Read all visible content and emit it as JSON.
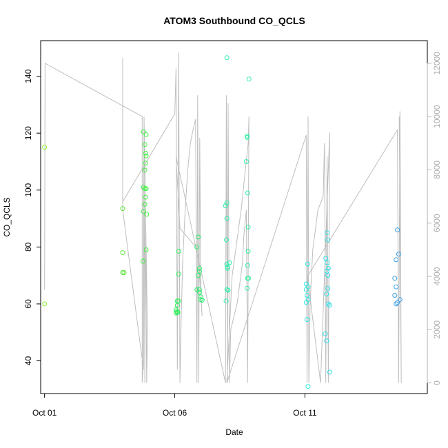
{
  "chart_data": {
    "type": "scatter",
    "title": "ATOM3 Southbound CO_QCLS",
    "xlabel": "Date",
    "ylabel": "CO_QCLS",
    "xlim": [
      -0.15,
      14.7
    ],
    "ylim": [
      28.5,
      152.5
    ],
    "y2lim": [
      -400,
      12850
    ],
    "x_ticks": [
      {
        "value": 0,
        "label": "Oct 01"
      },
      {
        "value": 5,
        "label": "Oct 06"
      },
      {
        "value": 10,
        "label": "Oct 11"
      }
    ],
    "y_ticks": [
      40,
      60,
      80,
      100,
      120,
      140
    ],
    "y2_ticks": [
      0,
      2000,
      4000,
      6000,
      8000,
      10000,
      12000
    ],
    "grid": false,
    "legend": "none",
    "colors": {
      "frame": "#000000",
      "line": "#bebebe",
      "right_axis": "#b0b0b0"
    },
    "points": [
      {
        "x": 0.0,
        "y": 115.0,
        "color": "#8cf22c"
      },
      {
        "x": 0.0,
        "y": 60.0,
        "color": "#8cf22c"
      },
      {
        "x": 3.0,
        "y": 93.5,
        "color": "#5ee83a"
      },
      {
        "x": 3.0,
        "y": 78.0,
        "color": "#5ee83a"
      },
      {
        "x": 3.0,
        "y": 71.0,
        "color": "#5ee83a"
      },
      {
        "x": 3.05,
        "y": 71.0,
        "color": "#5ee83a"
      },
      {
        "x": 3.8,
        "y": 120.5,
        "color": "#3ef03e"
      },
      {
        "x": 3.9,
        "y": 119.5,
        "color": "#3ef03e"
      },
      {
        "x": 3.85,
        "y": 116.0,
        "color": "#3ef03e"
      },
      {
        "x": 3.88,
        "y": 113.0,
        "color": "#3ef03e"
      },
      {
        "x": 3.9,
        "y": 112.0,
        "color": "#3ef03e"
      },
      {
        "x": 3.88,
        "y": 109.5,
        "color": "#3ef03e"
      },
      {
        "x": 3.85,
        "y": 107.0,
        "color": "#3ef03e"
      },
      {
        "x": 3.8,
        "y": 101.0,
        "color": "#3ef03e"
      },
      {
        "x": 3.85,
        "y": 100.5,
        "color": "#3ef03e"
      },
      {
        "x": 3.9,
        "y": 100.5,
        "color": "#3ef03e"
      },
      {
        "x": 3.88,
        "y": 97.5,
        "color": "#3ef03e"
      },
      {
        "x": 3.85,
        "y": 95.0,
        "color": "#3ef03e"
      },
      {
        "x": 3.8,
        "y": 92.5,
        "color": "#3ef03e"
      },
      {
        "x": 3.92,
        "y": 91.5,
        "color": "#3ef03e"
      },
      {
        "x": 3.9,
        "y": 79.0,
        "color": "#3ef03e"
      },
      {
        "x": 3.78,
        "y": 75.0,
        "color": "#3ef03e"
      },
      {
        "x": 5.15,
        "y": 78.5,
        "color": "#2ef05a"
      },
      {
        "x": 5.15,
        "y": 70.5,
        "color": "#2ef05a"
      },
      {
        "x": 5.1,
        "y": 61.0,
        "color": "#2ef05a"
      },
      {
        "x": 5.15,
        "y": 61.0,
        "color": "#2ef05a"
      },
      {
        "x": 5.1,
        "y": 59.5,
        "color": "#2ef05a"
      },
      {
        "x": 5.05,
        "y": 58.0,
        "color": "#2ef05a"
      },
      {
        "x": 5.08,
        "y": 57.5,
        "color": "#2ef05a"
      },
      {
        "x": 5.1,
        "y": 57.0,
        "color": "#2ef05a"
      },
      {
        "x": 5.05,
        "y": 56.8,
        "color": "#2ef05a"
      },
      {
        "x": 5.12,
        "y": 57.0,
        "color": "#2ef05a"
      },
      {
        "x": 5.9,
        "y": 83.5,
        "color": "#2cee6c"
      },
      {
        "x": 5.85,
        "y": 80.0,
        "color": "#2cee6c"
      },
      {
        "x": 5.95,
        "y": 72.5,
        "color": "#2cee6c"
      },
      {
        "x": 5.95,
        "y": 71.5,
        "color": "#2cee6c"
      },
      {
        "x": 5.9,
        "y": 70.0,
        "color": "#2cee6c"
      },
      {
        "x": 5.85,
        "y": 65.0,
        "color": "#2cee6c"
      },
      {
        "x": 5.95,
        "y": 65.0,
        "color": "#2cee6c"
      },
      {
        "x": 5.95,
        "y": 64.0,
        "color": "#2cee6c"
      },
      {
        "x": 6.0,
        "y": 62.5,
        "color": "#2cee6c"
      },
      {
        "x": 6.0,
        "y": 61.5,
        "color": "#2cee6c"
      },
      {
        "x": 6.05,
        "y": 61.3,
        "color": "#2cee6c"
      },
      {
        "x": 7.0,
        "y": 146.5,
        "color": "#2cf0a8"
      },
      {
        "x": 7.0,
        "y": 95.5,
        "color": "#2cf0a8"
      },
      {
        "x": 6.95,
        "y": 94.5,
        "color": "#2cf0a8"
      },
      {
        "x": 7.0,
        "y": 90.0,
        "color": "#2cf0a8"
      },
      {
        "x": 6.98,
        "y": 82.5,
        "color": "#2cf0a8"
      },
      {
        "x": 7.1,
        "y": 74.5,
        "color": "#2cf0a8"
      },
      {
        "x": 7.0,
        "y": 74.0,
        "color": "#2cf0a8"
      },
      {
        "x": 7.02,
        "y": 73.0,
        "color": "#2cf0a8"
      },
      {
        "x": 7.03,
        "y": 72.5,
        "color": "#2cf0a8"
      },
      {
        "x": 7.0,
        "y": 65.0,
        "color": "#2cf0a8"
      },
      {
        "x": 7.05,
        "y": 64.8,
        "color": "#2cf0a8"
      },
      {
        "x": 6.97,
        "y": 61.0,
        "color": "#2cf0a8"
      },
      {
        "x": 7.85,
        "y": 139.0,
        "color": "#2cf0a0"
      },
      {
        "x": 7.78,
        "y": 119.0,
        "color": "#2cf0a0"
      },
      {
        "x": 7.78,
        "y": 118.5,
        "color": "#2cf0a0"
      },
      {
        "x": 7.75,
        "y": 110.0,
        "color": "#2cf0a0"
      },
      {
        "x": 7.8,
        "y": 99.0,
        "color": "#2cf0a0"
      },
      {
        "x": 7.82,
        "y": 87.0,
        "color": "#2cf0a0"
      },
      {
        "x": 7.82,
        "y": 78.5,
        "color": "#2cf0a0"
      },
      {
        "x": 7.8,
        "y": 73.5,
        "color": "#2cf0a0"
      },
      {
        "x": 7.8,
        "y": 69.0,
        "color": "#2cf0a0"
      },
      {
        "x": 7.83,
        "y": 69.0,
        "color": "#2cf0a0"
      },
      {
        "x": 7.78,
        "y": 65.5,
        "color": "#2cf0a0"
      },
      {
        "x": 10.1,
        "y": 74.0,
        "color": "#2ee8e0"
      },
      {
        "x": 10.05,
        "y": 67.0,
        "color": "#2ee8e0"
      },
      {
        "x": 10.12,
        "y": 66.0,
        "color": "#2ee8e0"
      },
      {
        "x": 10.05,
        "y": 65.0,
        "color": "#2ee8e0"
      },
      {
        "x": 10.08,
        "y": 63.0,
        "color": "#2ee8e0"
      },
      {
        "x": 10.12,
        "y": 61.5,
        "color": "#2ee8e0"
      },
      {
        "x": 10.05,
        "y": 60.5,
        "color": "#2ee8e0"
      },
      {
        "x": 10.08,
        "y": 54.5,
        "color": "#2ee8e0"
      },
      {
        "x": 10.12,
        "y": 31.0,
        "color": "#2ee8e0"
      },
      {
        "x": 10.85,
        "y": 85.0,
        "color": "#30e0e8"
      },
      {
        "x": 10.88,
        "y": 82.5,
        "color": "#30e0e8"
      },
      {
        "x": 10.8,
        "y": 76.0,
        "color": "#30e0e8"
      },
      {
        "x": 10.85,
        "y": 74.5,
        "color": "#30e0e8"
      },
      {
        "x": 10.9,
        "y": 72.5,
        "color": "#30e0e8"
      },
      {
        "x": 10.85,
        "y": 71.5,
        "color": "#30e0e8"
      },
      {
        "x": 10.88,
        "y": 70.0,
        "color": "#30e0e8"
      },
      {
        "x": 10.88,
        "y": 65.5,
        "color": "#30e0e8"
      },
      {
        "x": 10.83,
        "y": 63.5,
        "color": "#30e0e8"
      },
      {
        "x": 10.9,
        "y": 60.0,
        "color": "#30e0e8"
      },
      {
        "x": 10.95,
        "y": 59.5,
        "color": "#30e0e8"
      },
      {
        "x": 10.78,
        "y": 49.5,
        "color": "#30e0e8"
      },
      {
        "x": 10.83,
        "y": 47.0,
        "color": "#30e0e8"
      },
      {
        "x": 10.95,
        "y": 36.0,
        "color": "#30e0e8"
      },
      {
        "x": 13.55,
        "y": 86.0,
        "color": "#3aa0e8"
      },
      {
        "x": 13.6,
        "y": 77.5,
        "color": "#3aa0e8"
      },
      {
        "x": 13.5,
        "y": 75.5,
        "color": "#3aa0e8"
      },
      {
        "x": 13.45,
        "y": 69.0,
        "color": "#3aa0e8"
      },
      {
        "x": 13.5,
        "y": 66.0,
        "color": "#3aa0e8"
      },
      {
        "x": 13.45,
        "y": 63.0,
        "color": "#3aa0e8"
      },
      {
        "x": 13.65,
        "y": 61.5,
        "color": "#3aa0e8"
      },
      {
        "x": 13.55,
        "y": 60.5,
        "color": "#3aa0e8"
      },
      {
        "x": 13.5,
        "y": 60.0,
        "color": "#3aa0e8"
      }
    ],
    "altitude_series": {
      "axis": "right",
      "x": [
        0.0,
        0.02,
        3.75,
        3.75,
        3.78,
        3.82,
        3.85,
        3.88,
        3.92,
        3.95,
        3.82,
        3.8,
        3.0,
        3.0,
        3.0,
        5.0,
        5.05,
        5.1,
        5.15,
        5.2,
        5.25,
        5.3,
        5.4,
        5.5,
        5.6,
        5.7,
        5.8,
        5.85,
        5.88,
        5.92,
        5.96,
        6.0,
        6.05,
        5.9,
        5.2,
        5.05,
        6.95,
        6.98,
        7.02,
        7.05,
        7.1,
        7.15,
        7.4,
        7.6,
        7.65,
        7.7,
        7.75,
        7.8,
        7.85,
        7.82,
        7.55,
        7.2,
        7.1,
        7.0,
        10.05,
        10.08,
        10.12,
        10.15,
        10.2,
        10.3,
        10.5,
        10.7,
        10.75,
        10.8,
        10.85,
        10.9,
        10.95,
        10.6,
        10.1,
        13.55,
        13.6,
        13.65,
        13.7,
        13.62
      ],
      "y": [
        3500,
        12000,
        10000,
        0,
        500,
        9800,
        0,
        6500,
        0,
        2000,
        10000,
        500,
        6500,
        12200,
        6800,
        10100,
        11800,
        500,
        12400,
        0,
        2500,
        4500,
        6500,
        8000,
        9000,
        9500,
        9900,
        0,
        10800,
        0,
        9200,
        3500,
        2500,
        5000,
        5800,
        8500,
        0,
        10800,
        0,
        10500,
        0,
        2000,
        3000,
        4500,
        5500,
        6000,
        6500,
        0,
        10000,
        9000,
        6500,
        4000,
        2000,
        0,
        9300,
        0,
        10000,
        0,
        3000,
        5000,
        6500,
        7000,
        9000,
        0,
        8500,
        0,
        9400,
        0,
        4000,
        9500,
        0,
        10200,
        0,
        10000
      ]
    }
  }
}
